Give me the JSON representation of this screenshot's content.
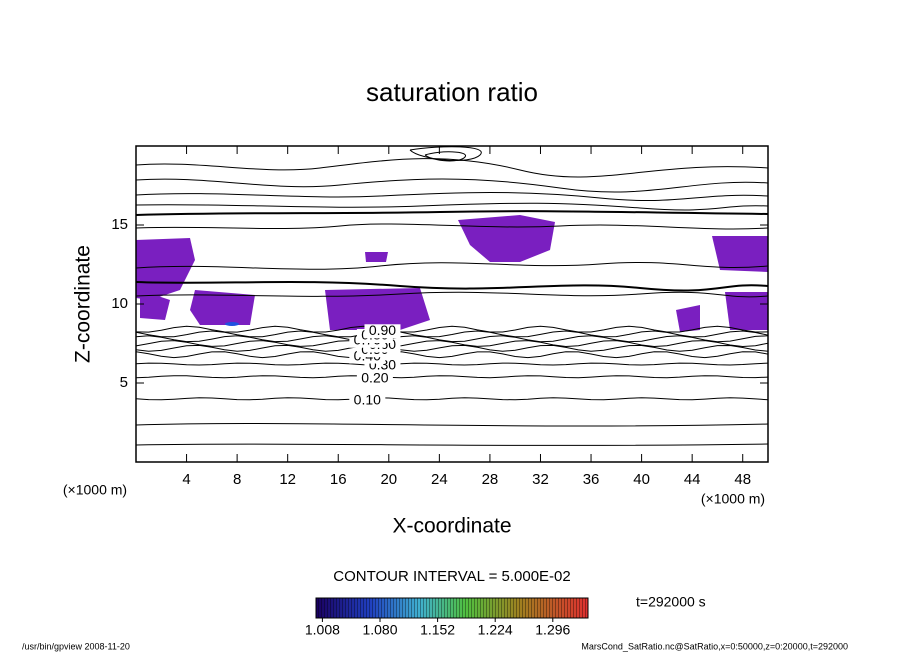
{
  "chart_data": {
    "type": "contour",
    "title": "saturation ratio",
    "xlabel": "X-coordinate",
    "ylabel": "Z-coordinate",
    "xunit": "(×1000 m)",
    "yunit": "(×1000 m)",
    "xlim": [
      0,
      50
    ],
    "ylim": [
      0,
      20
    ],
    "xticks": [
      4,
      8,
      12,
      16,
      20,
      24,
      28,
      32,
      36,
      40,
      44,
      48
    ],
    "yticks": [
      5,
      10,
      15
    ],
    "values": [
      0.1,
      0.2,
      0.3,
      0.4,
      0.5,
      0.6,
      0.7,
      0.8,
      0.9
    ],
    "value_labels": [
      "0.10",
      "0.20",
      "0.30",
      "0.40",
      "0.50",
      "0.60",
      "0.70",
      "0.80",
      "0.90"
    ],
    "contour_interval": "CONTOUR INTERVAL = 5.000E-02",
    "clim": [
      1.0,
      1.34
    ],
    "cticks": [
      1.008,
      {
        "value": 1.08,
        "label": "1.080"
      },
      1.152,
      1.224,
      1.296
    ],
    "time": "t=292000 s",
    "footer_left": "/usr/bin/gpview  2008-11-20",
    "footer_right": "MarsCond_SatRatio.nc@SatRatio,x=0:50000,z=0:20000,t=292000"
  }
}
